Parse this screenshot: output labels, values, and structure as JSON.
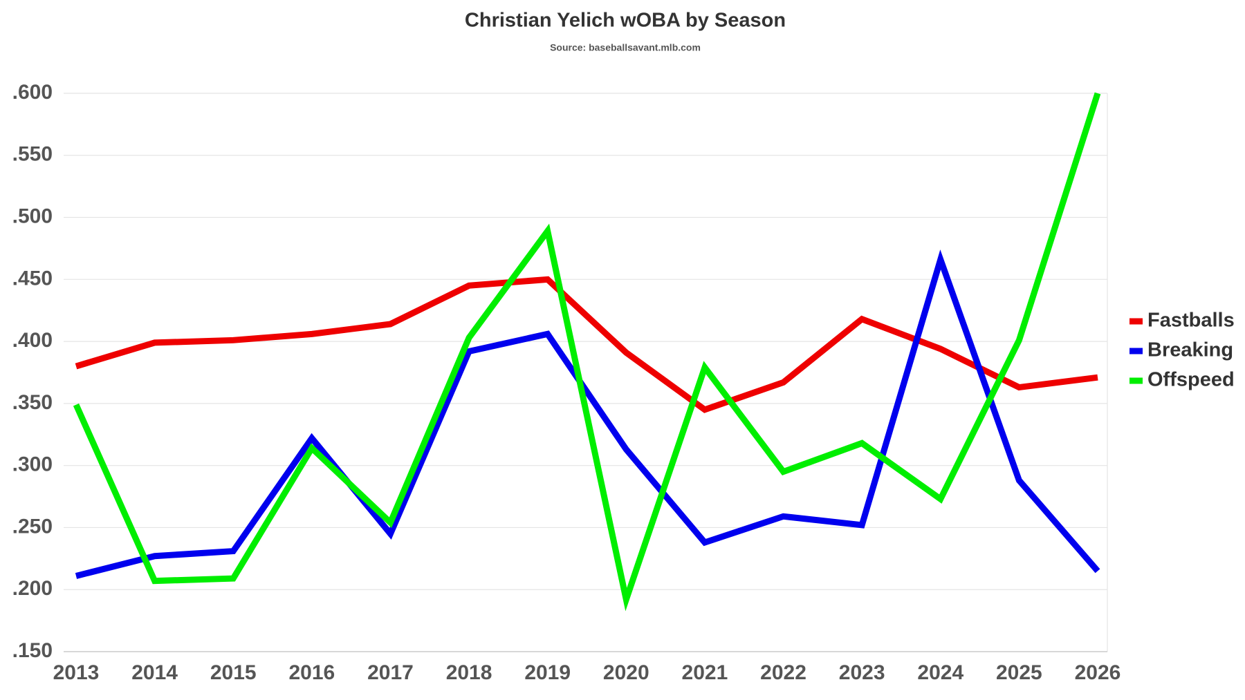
{
  "chart_data": {
    "type": "line",
    "title": "Christian Yelich wOBA by Season",
    "subtitle": "Source: baseballsavant.mlb.com",
    "categories": [
      "2013",
      "2014",
      "2015",
      "2016",
      "2017",
      "2018",
      "2019",
      "2020",
      "2021",
      "2022",
      "2023",
      "2024",
      "2025",
      "2026"
    ],
    "series": [
      {
        "name": "Fastballs",
        "color": "#ee0000",
        "values": [
          0.38,
          0.399,
          0.401,
          0.406,
          0.414,
          0.445,
          0.45,
          0.391,
          0.345,
          0.367,
          0.418,
          0.394,
          0.363,
          0.371
        ]
      },
      {
        "name": "Breaking",
        "color": "#0000ee",
        "values": [
          0.211,
          0.227,
          0.231,
          0.322,
          0.245,
          0.392,
          0.406,
          0.313,
          0.238,
          0.259,
          0.252,
          0.466,
          0.288,
          0.215
        ]
      },
      {
        "name": "Offspeed",
        "color": "#00ee00",
        "values": [
          0.349,
          0.207,
          0.209,
          0.314,
          0.254,
          0.403,
          0.489,
          0.192,
          0.379,
          0.295,
          0.318,
          0.273,
          0.401,
          0.6
        ]
      }
    ],
    "ylim": [
      0.15,
      0.6
    ],
    "yticks": [
      {
        "value": 0.15,
        "label": ".150"
      },
      {
        "value": 0.2,
        "label": ".200"
      },
      {
        "value": 0.25,
        "label": ".250"
      },
      {
        "value": 0.3,
        "label": ".300"
      },
      {
        "value": 0.35,
        "label": ".350"
      },
      {
        "value": 0.4,
        "label": ".400"
      },
      {
        "value": 0.45,
        "label": ".450"
      },
      {
        "value": 0.5,
        "label": ".500"
      },
      {
        "value": 0.55,
        "label": ".550"
      },
      {
        "value": 0.6,
        "label": ".600"
      }
    ],
    "grid": true,
    "legend": "right"
  }
}
